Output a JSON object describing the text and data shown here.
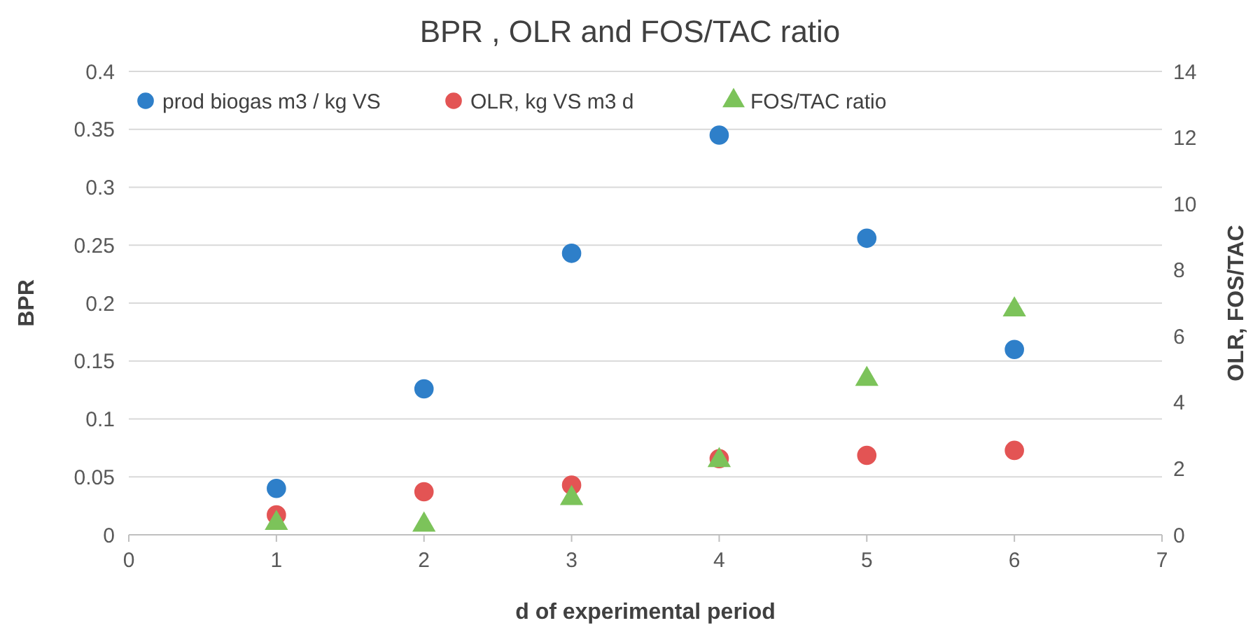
{
  "chart_data": {
    "type": "scatter",
    "title": "BPR , OLR and FOS/TAC ratio",
    "xlabel": "d of experimental period",
    "ylabel": "BPR",
    "y2label": "OLR, FOS/TAC",
    "x": [
      1,
      2,
      3,
      4,
      5,
      6
    ],
    "series": [
      {
        "name": "prod biogas m3 / kg VS",
        "color": "#2e7fc9",
        "values": [
          0.04,
          0.126,
          0.243,
          0.345,
          0.256,
          0.16
        ],
        "marker": "circle"
      },
      {
        "name": "OLR, kg VS m3 d",
        "color": "#e35454",
        "values": [
          0.6,
          1.3,
          1.5,
          2.3,
          2.4,
          2.55
        ],
        "axis": "y2",
        "marker": "circle"
      },
      {
        "name": "FOS/TAC ratio",
        "color": "#7cc35a",
        "values": [
          0.35,
          0.3,
          1.1,
          2.25,
          4.7,
          6.8
        ],
        "axis": "y2",
        "marker": "triangle"
      }
    ],
    "xlim": [
      0,
      7
    ],
    "xticks": [
      0,
      1,
      2,
      3,
      4,
      5,
      6,
      7
    ],
    "ylim": [
      0,
      0.4
    ],
    "yticks": [
      0,
      0.05,
      0.1,
      0.15,
      0.2,
      0.25,
      0.3,
      0.35,
      0.4
    ],
    "y2lim": [
      0,
      14
    ],
    "y2ticks": [
      0,
      2,
      4,
      6,
      8,
      10,
      12,
      14
    ],
    "grid": "y",
    "legend": "top left"
  }
}
